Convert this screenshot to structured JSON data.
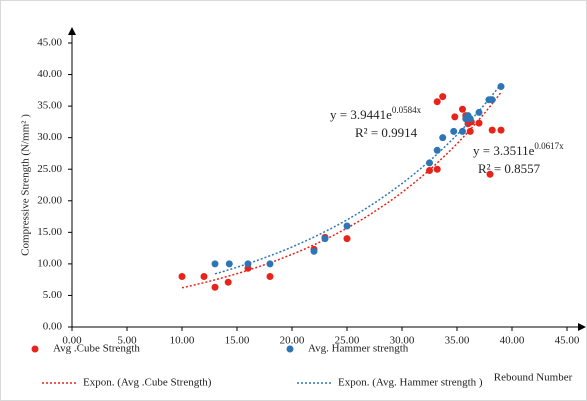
{
  "chart_data": {
    "type": "scatter",
    "y_label": "Compressive Strength (N/mm² )",
    "x_label": "Rebound Number",
    "xlim": [
      0,
      45
    ],
    "ylim": [
      0,
      45
    ],
    "xticks": [
      {
        "value": 0,
        "label": "0.00"
      },
      {
        "value": 5,
        "label": "5.00"
      },
      {
        "value": 10,
        "label": "10.00"
      },
      {
        "value": 15,
        "label": "15.00"
      },
      {
        "value": 20,
        "label": "20.00"
      },
      {
        "value": 25,
        "label": "25.00"
      },
      {
        "value": 30,
        "label": "30.00"
      },
      {
        "value": 35,
        "label": "35.00"
      },
      {
        "value": 40,
        "label": "40.00"
      },
      {
        "value": 45,
        "label": "45.00"
      }
    ],
    "yticks": [
      {
        "value": 0,
        "label": "0.00"
      },
      {
        "value": 5,
        "label": "5.00"
      },
      {
        "value": 10,
        "label": "10.00"
      },
      {
        "value": 15,
        "label": "15.00"
      },
      {
        "value": 20,
        "label": "20.00"
      },
      {
        "value": 25,
        "label": "25.00"
      },
      {
        "value": 30,
        "label": "30.00"
      },
      {
        "value": 35,
        "label": "35.00"
      },
      {
        "value": 40,
        "label": "40.00"
      },
      {
        "value": 45,
        "label": "45.00"
      }
    ],
    "grid": false,
    "series": [
      {
        "name": "Avg .Cube Strength",
        "color": "#e8231a",
        "x": [
          10,
          12,
          13,
          14.2,
          16,
          18,
          22,
          23,
          25,
          32.5,
          33.2,
          33.2,
          33.7,
          34.8,
          35.5,
          35.8,
          36,
          36.2,
          36.3,
          37,
          38,
          38.2,
          39
        ],
        "values": [
          8,
          8,
          6.3,
          7.1,
          9.3,
          8,
          12.3,
          14.2,
          14,
          24.8,
          25,
          35.7,
          36.5,
          33.3,
          34.5,
          33.5,
          32.2,
          31,
          32.5,
          32.3,
          24.2,
          31.2,
          31.2
        ],
        "trendline": {
          "name": "Expon. (Avg .Cube Strength)",
          "a": 3.3511,
          "b": 0.0617,
          "equation": "y = 3.3511e",
          "exponent": "0.0617x",
          "r2": "R² = 0.8557"
        }
      },
      {
        "name": "Avg. Hammer strength",
        "color": "#2e75b6",
        "x": [
          13,
          14.3,
          16,
          18,
          22,
          23,
          25,
          32.5,
          33.2,
          33.7,
          34.7,
          35.5,
          35.8,
          36,
          36.2,
          37,
          37.9,
          38.2,
          39
        ],
        "values": [
          10,
          10,
          10,
          10,
          12,
          14,
          16,
          26,
          28,
          30,
          31,
          31,
          33,
          33.5,
          33,
          34,
          36,
          36,
          38.1
        ],
        "trendline": {
          "name": "Expon. (Avg. Hammer strength )",
          "a": 3.9441,
          "b": 0.0584,
          "equation": "y = 3.9441e",
          "exponent": "0.0584x",
          "r2": "R² = 0.9914"
        }
      }
    ]
  }
}
